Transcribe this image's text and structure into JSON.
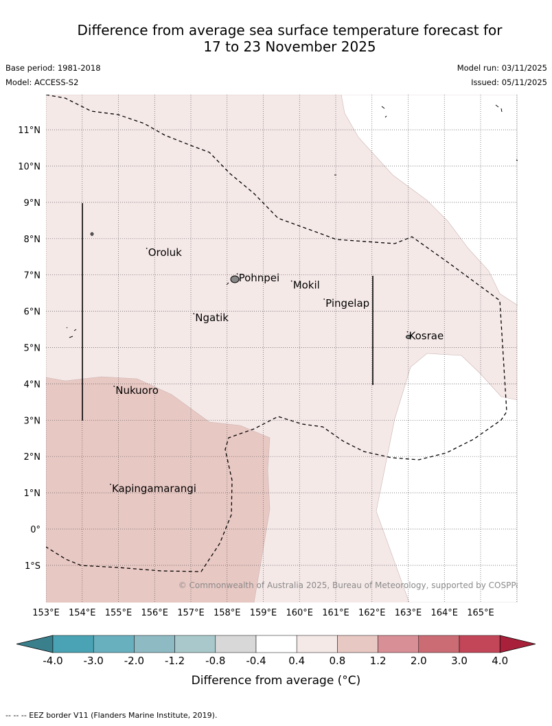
{
  "header": {
    "title_line1": "Difference from average sea surface temperature forecast for",
    "title_line2": "17 to 23 November 2025",
    "base_period": "Base period: 1981-2018",
    "model": "Model: ACCESS-S2",
    "model_run": "Model run: 03/11/2025",
    "issued": "Issued: 05/11/2025"
  },
  "map": {
    "lat_labels": [
      "11°N",
      "10°N",
      "9°N",
      "8°N",
      "7°N",
      "6°N",
      "5°N",
      "4°N",
      "3°N",
      "2°N",
      "1°N",
      "0°",
      "1°S"
    ],
    "lat_values": [
      11,
      10,
      9,
      8,
      7,
      6,
      5,
      4,
      3,
      2,
      1,
      0,
      -1
    ],
    "lon_labels": [
      "153°E",
      "154°E",
      "155°E",
      "156°E",
      "157°E",
      "158°E",
      "159°E",
      "160°E",
      "161°E",
      "162°E",
      "163°E",
      "164°E",
      "165°E"
    ],
    "lon_values": [
      153,
      154,
      155,
      156,
      157,
      158,
      159,
      160,
      161,
      162,
      163,
      164,
      165
    ],
    "places": [
      {
        "name": "Oroluk",
        "lon": 155.8,
        "lat": 7.6
      },
      {
        "name": "Pohnpei",
        "lon": 158.3,
        "lat": 6.9
      },
      {
        "name": "Mokil",
        "lon": 159.8,
        "lat": 6.7
      },
      {
        "name": "Pingelap",
        "lon": 160.7,
        "lat": 6.2
      },
      {
        "name": "Ngatik",
        "lon": 157.1,
        "lat": 5.8
      },
      {
        "name": "Kosrae",
        "lon": 163.0,
        "lat": 5.3
      },
      {
        "name": "Nukuoro",
        "lon": 154.9,
        "lat": 3.8
      },
      {
        "name": "Kapingamarangi",
        "lon": 154.8,
        "lat": 1.1
      }
    ],
    "copyright": "© Commonwealth of Australia 2025, Bureau of Meteorology, supported by COSPPac",
    "colors": {
      "band_0_4_to_0_8": "#f5e9e8",
      "band_0_8_to_1_2": "#e8c8c3",
      "near_zero": "#ffffff",
      "grid": "#555555"
    }
  },
  "colorbar": {
    "title": "Difference from average (°C)",
    "tick_labels": [
      "-4.0",
      "-3.0",
      "-2.0",
      "-1.2",
      "-0.8",
      "-0.4",
      "0.4",
      "0.8",
      "1.2",
      "2.0",
      "3.0",
      "4.0"
    ],
    "colors": [
      "#4aa3b4",
      "#69b0bf",
      "#8ebac4",
      "#a8c8cb",
      "#d8d8d8",
      "#ffffff",
      "#f5e9e8",
      "#e8c8c3",
      "#d98f96",
      "#cb6b74",
      "#c24658"
    ],
    "low_extend_color": "#3a7f8c",
    "high_extend_color": "#a8203a"
  },
  "footer": {
    "note": "--  --  -- EEZ border V11 (Flanders Marine Institute, 2019)."
  }
}
